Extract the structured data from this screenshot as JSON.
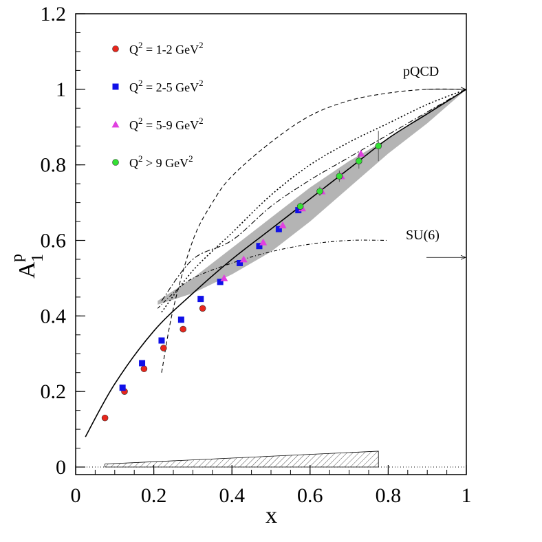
{
  "chart_data": {
    "type": "scatter",
    "xlabel": "x",
    "ylabel_main": "A",
    "ylabel_super": "p",
    "ylabel_sub": "1",
    "xlim": [
      0,
      1
    ],
    "ylim": [
      -0.02,
      1.2
    ],
    "x_ticks": [
      0,
      0.2,
      0.4,
      0.6,
      0.8,
      1
    ],
    "x_tick_labels": [
      "0",
      "0.2",
      "0.4",
      "0.6",
      "0.8",
      "1"
    ],
    "y_ticks": [
      0,
      0.2,
      0.4,
      0.6,
      0.8,
      1,
      1.2
    ],
    "y_tick_labels": [
      "0",
      "0.2",
      "0.4",
      "0.6",
      "0.8",
      "1",
      "1.2"
    ],
    "grid": false,
    "legend_position": "top-left",
    "series": [
      {
        "name_prefix": "Q",
        "name_exp": "2",
        "name_mid": " = 1-2 GeV",
        "name_exp2": "2",
        "marker": "circle",
        "color": "#e8261c",
        "x": [
          0.075,
          0.125,
          0.175,
          0.225,
          0.275,
          0.325
        ],
        "y": [
          0.13,
          0.2,
          0.26,
          0.315,
          0.365,
          0.42
        ]
      },
      {
        "name_prefix": "Q",
        "name_exp": "2",
        "name_mid": " = 2-5 GeV",
        "name_exp2": "2",
        "marker": "square",
        "color": "#1010e8",
        "x": [
          0.12,
          0.17,
          0.22,
          0.27,
          0.32,
          0.37,
          0.42,
          0.47,
          0.52,
          0.57
        ],
        "y": [
          0.21,
          0.275,
          0.335,
          0.39,
          0.445,
          0.49,
          0.54,
          0.585,
          0.63,
          0.68
        ]
      },
      {
        "name_prefix": "Q",
        "name_exp": "2",
        "name_mid": " = 5-9 GeV",
        "name_exp2": "2",
        "marker": "triangle",
        "color": "#e040e0",
        "x": [
          0.38,
          0.43,
          0.48,
          0.53,
          0.58,
          0.63,
          0.68,
          0.73
        ],
        "y": [
          0.5,
          0.55,
          0.595,
          0.64,
          0.685,
          0.73,
          0.77,
          0.83
        ]
      },
      {
        "name_prefix": "Q",
        "name_exp": "2",
        "name_mid": " > 9 GeV",
        "name_exp2": "2",
        "marker": "circle",
        "color": "#33e033",
        "x": [
          0.575,
          0.625,
          0.675,
          0.725,
          0.775
        ],
        "y": [
          0.69,
          0.73,
          0.77,
          0.81,
          0.85
        ],
        "err": [
          0.01,
          0.012,
          0.015,
          0.02,
          0.04
        ]
      }
    ],
    "curves": {
      "solid": [
        [
          0.025,
          0.08
        ],
        [
          0.1,
          0.22
        ],
        [
          0.2,
          0.36
        ],
        [
          0.3,
          0.46
        ],
        [
          0.4,
          0.55
        ],
        [
          0.5,
          0.63
        ],
        [
          0.6,
          0.71
        ],
        [
          0.7,
          0.79
        ],
        [
          0.8,
          0.87
        ],
        [
          0.9,
          0.935
        ],
        [
          1.0,
          1.0
        ]
      ],
      "dashed_long": [
        [
          0.22,
          0.25
        ],
        [
          0.25,
          0.42
        ],
        [
          0.3,
          0.6
        ],
        [
          0.35,
          0.7
        ],
        [
          0.4,
          0.77
        ],
        [
          0.5,
          0.86
        ],
        [
          0.6,
          0.93
        ],
        [
          0.7,
          0.97
        ],
        [
          0.8,
          0.99
        ],
        [
          0.9,
          1.0
        ],
        [
          1.0,
          1.0
        ]
      ],
      "dotted": [
        [
          0.22,
          0.41
        ],
        [
          0.3,
          0.52
        ],
        [
          0.4,
          0.62
        ],
        [
          0.5,
          0.72
        ],
        [
          0.6,
          0.8
        ],
        [
          0.7,
          0.86
        ],
        [
          0.8,
          0.91
        ],
        [
          0.9,
          0.96
        ],
        [
          1.0,
          1.0
        ]
      ],
      "dash_dot": [
        [
          0.22,
          0.44
        ],
        [
          0.3,
          0.55
        ],
        [
          0.4,
          0.6
        ],
        [
          0.5,
          0.69
        ],
        [
          0.6,
          0.76
        ],
        [
          0.7,
          0.82
        ],
        [
          0.8,
          0.88
        ],
        [
          0.9,
          0.94
        ],
        [
          1.0,
          1.0
        ]
      ],
      "dashed_short": [
        [
          0.21,
          0.42
        ],
        [
          0.25,
          0.46
        ],
        [
          0.3,
          0.5
        ],
        [
          0.4,
          0.54
        ],
        [
          0.5,
          0.57
        ],
        [
          0.6,
          0.59
        ],
        [
          0.7,
          0.6
        ],
        [
          0.8,
          0.6
        ]
      ]
    },
    "band": {
      "upper": [
        [
          0.21,
          0.44
        ],
        [
          0.3,
          0.5
        ],
        [
          0.4,
          0.58
        ],
        [
          0.5,
          0.66
        ],
        [
          0.6,
          0.74
        ],
        [
          0.7,
          0.81
        ],
        [
          0.8,
          0.87
        ],
        [
          0.9,
          0.94
        ],
        [
          1.0,
          1.0
        ]
      ],
      "lower": [
        [
          0.21,
          0.43
        ],
        [
          0.3,
          0.46
        ],
        [
          0.4,
          0.51
        ],
        [
          0.5,
          0.57
        ],
        [
          0.6,
          0.65
        ],
        [
          0.7,
          0.74
        ],
        [
          0.8,
          0.83
        ],
        [
          0.9,
          0.91
        ],
        [
          1.0,
          1.0
        ]
      ],
      "color": "#b4b4b4"
    },
    "syst_band": {
      "x_start": 0.075,
      "x_end": 0.775,
      "top_start": 0.008,
      "top_end": 0.042
    },
    "annotations": {
      "pqcd_label": "pQCD",
      "pqcd_y": 1.0,
      "su6_label": "SU(6)",
      "su6_y": 0.555
    }
  }
}
